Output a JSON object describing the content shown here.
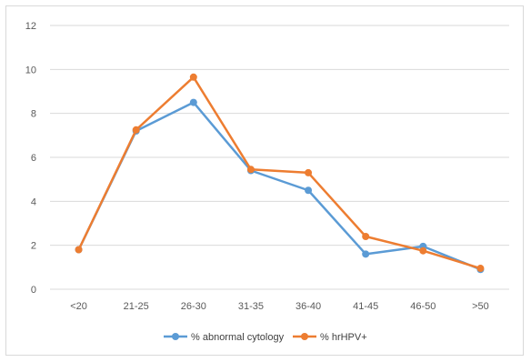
{
  "chart_data": {
    "type": "line",
    "title": "",
    "xlabel": "",
    "ylabel": "",
    "categories": [
      "<20",
      "21-25",
      "26-30",
      "31-35",
      "36-40",
      "41-45",
      "46-50",
      ">50"
    ],
    "ylim": [
      0,
      12
    ],
    "yticks": [
      "0",
      "2",
      "4",
      "6",
      "8",
      "10",
      "12"
    ],
    "grid": true,
    "legend_position": "bottom",
    "series": [
      {
        "name": "% abnormal cytology",
        "color": "#5B9BD5",
        "values": [
          1.8,
          7.2,
          8.5,
          5.4,
          4.5,
          1.6,
          1.95,
          0.9
        ]
      },
      {
        "name": "% hrHPV+",
        "color": "#ED7D31",
        "values": [
          1.8,
          7.25,
          9.65,
          5.45,
          5.3,
          2.4,
          1.75,
          0.95
        ]
      }
    ]
  }
}
